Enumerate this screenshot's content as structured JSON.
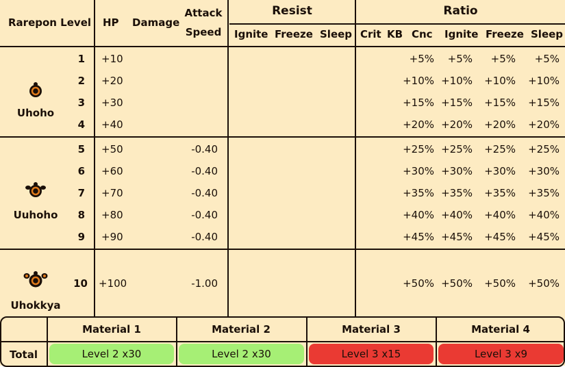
{
  "header": {
    "rarepon_level": "Rarepon Level",
    "hp": "HP",
    "damage": "Damage",
    "attack_speed_line1": "Attack",
    "attack_speed_line2": "Speed",
    "resist": "Resist",
    "resist_cols": [
      "Ignite",
      "Freeze",
      "Sleep"
    ],
    "ratio": "Ratio",
    "ratio_cols": [
      "Crit",
      "KB",
      "Cnc",
      "Ignite",
      "Freeze",
      "Sleep"
    ]
  },
  "groups": [
    {
      "name": "Uhoho",
      "icon": "rarepon-face-icon",
      "rows": [
        {
          "level": "1",
          "hp": "+10",
          "attack_speed": "",
          "ratio": [
            "+5%",
            "+5%",
            "+5%",
            "+5%"
          ]
        },
        {
          "level": "2",
          "hp": "+20",
          "attack_speed": "",
          "ratio": [
            "+10%",
            "+10%",
            "+10%",
            "+10%"
          ]
        },
        {
          "level": "3",
          "hp": "+30",
          "attack_speed": "",
          "ratio": [
            "+15%",
            "+15%",
            "+15%",
            "+15%"
          ]
        },
        {
          "level": "4",
          "hp": "+40",
          "attack_speed": "",
          "ratio": [
            "+20%",
            "+20%",
            "+20%",
            "+20%"
          ]
        }
      ]
    },
    {
      "name": "Uuhoho",
      "icon": "rarepon-face-icon",
      "rows": [
        {
          "level": "5",
          "hp": "+50",
          "attack_speed": "-0.40",
          "ratio": [
            "+25%",
            "+25%",
            "+25%",
            "+25%"
          ]
        },
        {
          "level": "6",
          "hp": "+60",
          "attack_speed": "-0.40",
          "ratio": [
            "+30%",
            "+30%",
            "+30%",
            "+30%"
          ]
        },
        {
          "level": "7",
          "hp": "+70",
          "attack_speed": "-0.40",
          "ratio": [
            "+35%",
            "+35%",
            "+35%",
            "+35%"
          ]
        },
        {
          "level": "8",
          "hp": "+80",
          "attack_speed": "-0.40",
          "ratio": [
            "+40%",
            "+40%",
            "+40%",
            "+40%"
          ]
        },
        {
          "level": "9",
          "hp": "+90",
          "attack_speed": "-0.40",
          "ratio": [
            "+45%",
            "+45%",
            "+45%",
            "+45%"
          ]
        }
      ]
    },
    {
      "name": "Uhokkya",
      "icon": "rarepon-face-icon",
      "rows": [
        {
          "level": "10",
          "hp": "+100",
          "attack_speed": "-1.00",
          "ratio": [
            "+50%",
            "+50%",
            "+50%",
            "+50%"
          ]
        }
      ]
    }
  ],
  "materials": {
    "headers": [
      "Material 1",
      "Material 2",
      "Material 3",
      "Material 4"
    ],
    "total_label": "Total",
    "values": [
      {
        "text": "Level 2 x30",
        "status": "ok",
        "color": "#a6ef75"
      },
      {
        "text": "Level 2 x30",
        "status": "ok",
        "color": "#a6ef75"
      },
      {
        "text": "Level 3 x15",
        "status": "insufficient",
        "color": "#ea3a33"
      },
      {
        "text": "Level 3 x9",
        "status": "insufficient",
        "color": "#ea3a33"
      }
    ]
  },
  "colors": {
    "background": "#fdebc2",
    "line": "#1a0f08",
    "icon_ring": "#e07a1a"
  }
}
